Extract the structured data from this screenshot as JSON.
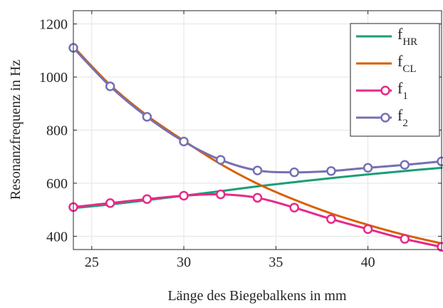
{
  "chart_data": {
    "type": "line",
    "title": "",
    "xlabel": "Länge des Biegebalkens in mm",
    "ylabel": "Resonanzfrequenz in Hz",
    "xlim": [
      24,
      44
    ],
    "ylim": [
      350,
      1250
    ],
    "xticks": [
      25,
      30,
      35,
      40
    ],
    "yticks": [
      400,
      600,
      800,
      1000,
      1200
    ],
    "xtick_labels": [
      "25",
      "30",
      "35",
      "40"
    ],
    "ytick_labels": [
      "400",
      "600",
      "800",
      "1000",
      "1200"
    ],
    "grid": true,
    "legend_position": "top-right",
    "series": [
      {
        "name": "f",
        "name_sub": "HR",
        "color": "#1b9e77",
        "marker": "none",
        "x": [
          24,
          26,
          28,
          30,
          32,
          34,
          36,
          38,
          40,
          42,
          44
        ],
        "y": [
          506,
          520,
          536,
          553,
          570,
          588,
          604,
          619,
          633,
          646,
          658
        ]
      },
      {
        "name": "f",
        "name_sub": "CL",
        "color": "#d95f02",
        "marker": "none",
        "x": [
          24,
          26,
          28,
          30,
          32,
          34,
          36,
          38,
          40,
          42,
          44
        ],
        "y": [
          1115,
          970,
          855,
          760,
          672,
          598,
          538,
          486,
          443,
          405,
          373
        ]
      },
      {
        "name": "f",
        "name_sub": "1",
        "color": "#e7298a",
        "marker": "circle",
        "x": [
          24,
          26,
          28,
          30,
          32,
          34,
          36,
          38,
          40,
          42,
          44
        ],
        "y": [
          510,
          525,
          540,
          553,
          558,
          545,
          508,
          465,
          427,
          390,
          360
        ]
      },
      {
        "name": "f",
        "name_sub": "2",
        "color": "#7570b3",
        "marker": "circle",
        "x": [
          24,
          26,
          28,
          30,
          32,
          34,
          36,
          38,
          40,
          42,
          44
        ],
        "y": [
          1110,
          965,
          850,
          757,
          688,
          648,
          641,
          646,
          658,
          669,
          682
        ]
      }
    ]
  }
}
